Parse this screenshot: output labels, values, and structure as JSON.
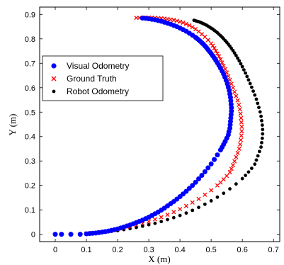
{
  "chart_data": {
    "type": "scatter",
    "xlabel": "X (m)",
    "ylabel": "Y (m)",
    "xlim": [
      -0.05,
      0.72
    ],
    "ylim": [
      -0.03,
      0.93
    ],
    "xticks": [
      "0",
      "0.1",
      "0.2",
      "0.3",
      "0.4",
      "0.5",
      "0.6",
      "0.7"
    ],
    "yticks": [
      "0",
      "0.1",
      "0.2",
      "0.3",
      "0.4",
      "0.5",
      "0.6",
      "0.7",
      "0.8",
      "0.9"
    ],
    "xtick_values": [
      0,
      0.1,
      0.2,
      0.3,
      0.4,
      0.5,
      0.6,
      0.7
    ],
    "ytick_values": [
      0,
      0.1,
      0.2,
      0.3,
      0.4,
      0.5,
      0.6,
      0.7,
      0.8,
      0.9
    ],
    "grid": false,
    "legend_position": "top-left",
    "series": [
      {
        "name": "Visual Odometry",
        "marker": "circle",
        "color": "#0000ff",
        "x": [
          0.0,
          0.02,
          0.05,
          0.08,
          0.1,
          0.11,
          0.12,
          0.13,
          0.14,
          0.15,
          0.16,
          0.17,
          0.18,
          0.19,
          0.2,
          0.21,
          0.22,
          0.23,
          0.24,
          0.25,
          0.26,
          0.27,
          0.28,
          0.29,
          0.3,
          0.31,
          0.32,
          0.33,
          0.34,
          0.35,
          0.36,
          0.37,
          0.38,
          0.39,
          0.4,
          0.41,
          0.42,
          0.43,
          0.44,
          0.45,
          0.46,
          0.47,
          0.48,
          0.49,
          0.5,
          0.51,
          0.52,
          0.53,
          0.535,
          0.54,
          0.545,
          0.55,
          0.555,
          0.557,
          0.56,
          0.561,
          0.562,
          0.563,
          0.564,
          0.565,
          0.565,
          0.564,
          0.563,
          0.562,
          0.56,
          0.558,
          0.555,
          0.552,
          0.548,
          0.544,
          0.54,
          0.535,
          0.53,
          0.525,
          0.52,
          0.515,
          0.51,
          0.505,
          0.5,
          0.495,
          0.49,
          0.485,
          0.48,
          0.475,
          0.47,
          0.465,
          0.46,
          0.455,
          0.45,
          0.44,
          0.43,
          0.42,
          0.41,
          0.4,
          0.39,
          0.38,
          0.37,
          0.36,
          0.35,
          0.34,
          0.33,
          0.32,
          0.31,
          0.3,
          0.29,
          0.28
        ],
        "y": [
          0.0,
          0.0,
          0.0,
          0.0,
          0.002,
          0.003,
          0.004,
          0.005,
          0.007,
          0.009,
          0.011,
          0.013,
          0.016,
          0.019,
          0.022,
          0.026,
          0.03,
          0.034,
          0.038,
          0.043,
          0.048,
          0.053,
          0.058,
          0.064,
          0.07,
          0.077,
          0.084,
          0.091,
          0.099,
          0.107,
          0.116,
          0.125,
          0.134,
          0.144,
          0.154,
          0.165,
          0.176,
          0.188,
          0.2,
          0.213,
          0.227,
          0.241,
          0.256,
          0.272,
          0.288,
          0.306,
          0.325,
          0.345,
          0.356,
          0.368,
          0.38,
          0.393,
          0.407,
          0.42,
          0.434,
          0.448,
          0.462,
          0.476,
          0.49,
          0.504,
          0.518,
          0.532,
          0.546,
          0.56,
          0.574,
          0.588,
          0.602,
          0.616,
          0.63,
          0.643,
          0.656,
          0.668,
          0.68,
          0.691,
          0.702,
          0.712,
          0.722,
          0.731,
          0.74,
          0.748,
          0.756,
          0.764,
          0.771,
          0.778,
          0.784,
          0.79,
          0.796,
          0.801,
          0.806,
          0.815,
          0.823,
          0.831,
          0.838,
          0.844,
          0.85,
          0.855,
          0.86,
          0.864,
          0.868,
          0.872,
          0.875,
          0.878,
          0.88,
          0.882,
          0.884,
          0.885
        ]
      },
      {
        "name": "Ground Truth",
        "marker": "x",
        "color": "#ff0000",
        "x": [
          0.1,
          0.12,
          0.14,
          0.16,
          0.18,
          0.2,
          0.22,
          0.24,
          0.26,
          0.28,
          0.3,
          0.32,
          0.34,
          0.36,
          0.38,
          0.4,
          0.42,
          0.44,
          0.46,
          0.48,
          0.5,
          0.52,
          0.53,
          0.54,
          0.55,
          0.56,
          0.565,
          0.57,
          0.575,
          0.58,
          0.585,
          0.59,
          0.593,
          0.595,
          0.597,
          0.598,
          0.598,
          0.597,
          0.596,
          0.594,
          0.592,
          0.589,
          0.585,
          0.58,
          0.575,
          0.57,
          0.565,
          0.56,
          0.555,
          0.55,
          0.545,
          0.54,
          0.535,
          0.53,
          0.525,
          0.52,
          0.515,
          0.51,
          0.505,
          0.5,
          0.49,
          0.48,
          0.47,
          0.46,
          0.45,
          0.44,
          0.43,
          0.42,
          0.41,
          0.4,
          0.39,
          0.38,
          0.37,
          0.36,
          0.35,
          0.34,
          0.33,
          0.32,
          0.31,
          0.3,
          0.29,
          0.28,
          0.27,
          0.26
        ],
        "y": [
          0.003,
          0.005,
          0.008,
          0.011,
          0.015,
          0.02,
          0.025,
          0.031,
          0.037,
          0.044,
          0.052,
          0.061,
          0.07,
          0.08,
          0.091,
          0.103,
          0.116,
          0.13,
          0.145,
          0.162,
          0.18,
          0.2,
          0.212,
          0.225,
          0.239,
          0.254,
          0.268,
          0.283,
          0.299,
          0.316,
          0.333,
          0.35,
          0.368,
          0.386,
          0.404,
          0.422,
          0.44,
          0.458,
          0.476,
          0.494,
          0.512,
          0.53,
          0.548,
          0.566,
          0.583,
          0.6,
          0.616,
          0.632,
          0.647,
          0.662,
          0.676,
          0.69,
          0.703,
          0.716,
          0.728,
          0.74,
          0.751,
          0.762,
          0.772,
          0.781,
          0.795,
          0.808,
          0.819,
          0.83,
          0.84,
          0.848,
          0.855,
          0.861,
          0.866,
          0.87,
          0.874,
          0.877,
          0.879,
          0.881,
          0.883,
          0.884,
          0.885,
          0.886,
          0.887,
          0.887,
          0.887,
          0.886,
          0.886,
          0.886
        ]
      },
      {
        "name": "Robot Odometry",
        "marker": "dot",
        "color": "#000000",
        "x": [
          0.0,
          0.02,
          0.05,
          0.08,
          0.1,
          0.12,
          0.14,
          0.16,
          0.18,
          0.2,
          0.22,
          0.24,
          0.26,
          0.28,
          0.3,
          0.32,
          0.34,
          0.36,
          0.38,
          0.4,
          0.42,
          0.44,
          0.46,
          0.48,
          0.5,
          0.52,
          0.54,
          0.56,
          0.58,
          0.6,
          0.61,
          0.62,
          0.63,
          0.64,
          0.645,
          0.65,
          0.655,
          0.66,
          0.662,
          0.664,
          0.665,
          0.665,
          0.664,
          0.662,
          0.66,
          0.657,
          0.653,
          0.649,
          0.645,
          0.64,
          0.635,
          0.63,
          0.625,
          0.62,
          0.615,
          0.61,
          0.605,
          0.6,
          0.595,
          0.59,
          0.585,
          0.58,
          0.575,
          0.57,
          0.565,
          0.56,
          0.555,
          0.55,
          0.545,
          0.54,
          0.535,
          0.53,
          0.525,
          0.52,
          0.515,
          0.51,
          0.505,
          0.5,
          0.495,
          0.49,
          0.485,
          0.48,
          0.475,
          0.47,
          0.465,
          0.46,
          0.455,
          0.45,
          0.445
        ],
        "y": [
          0.0,
          0.0,
          0.001,
          0.002,
          0.003,
          0.005,
          0.007,
          0.009,
          0.012,
          0.015,
          0.019,
          0.023,
          0.028,
          0.033,
          0.039,
          0.045,
          0.052,
          0.06,
          0.068,
          0.077,
          0.087,
          0.098,
          0.11,
          0.123,
          0.137,
          0.152,
          0.168,
          0.186,
          0.206,
          0.228,
          0.241,
          0.255,
          0.27,
          0.287,
          0.304,
          0.321,
          0.339,
          0.357,
          0.375,
          0.393,
          0.411,
          0.429,
          0.447,
          0.465,
          0.483,
          0.501,
          0.519,
          0.536,
          0.553,
          0.57,
          0.586,
          0.602,
          0.617,
          0.632,
          0.646,
          0.66,
          0.673,
          0.686,
          0.698,
          0.71,
          0.721,
          0.732,
          0.742,
          0.752,
          0.761,
          0.77,
          0.778,
          0.786,
          0.793,
          0.8,
          0.807,
          0.813,
          0.819,
          0.825,
          0.83,
          0.835,
          0.84,
          0.844,
          0.848,
          0.852,
          0.856,
          0.859,
          0.862,
          0.865,
          0.868,
          0.87,
          0.872,
          0.874,
          0.876
        ]
      }
    ]
  }
}
